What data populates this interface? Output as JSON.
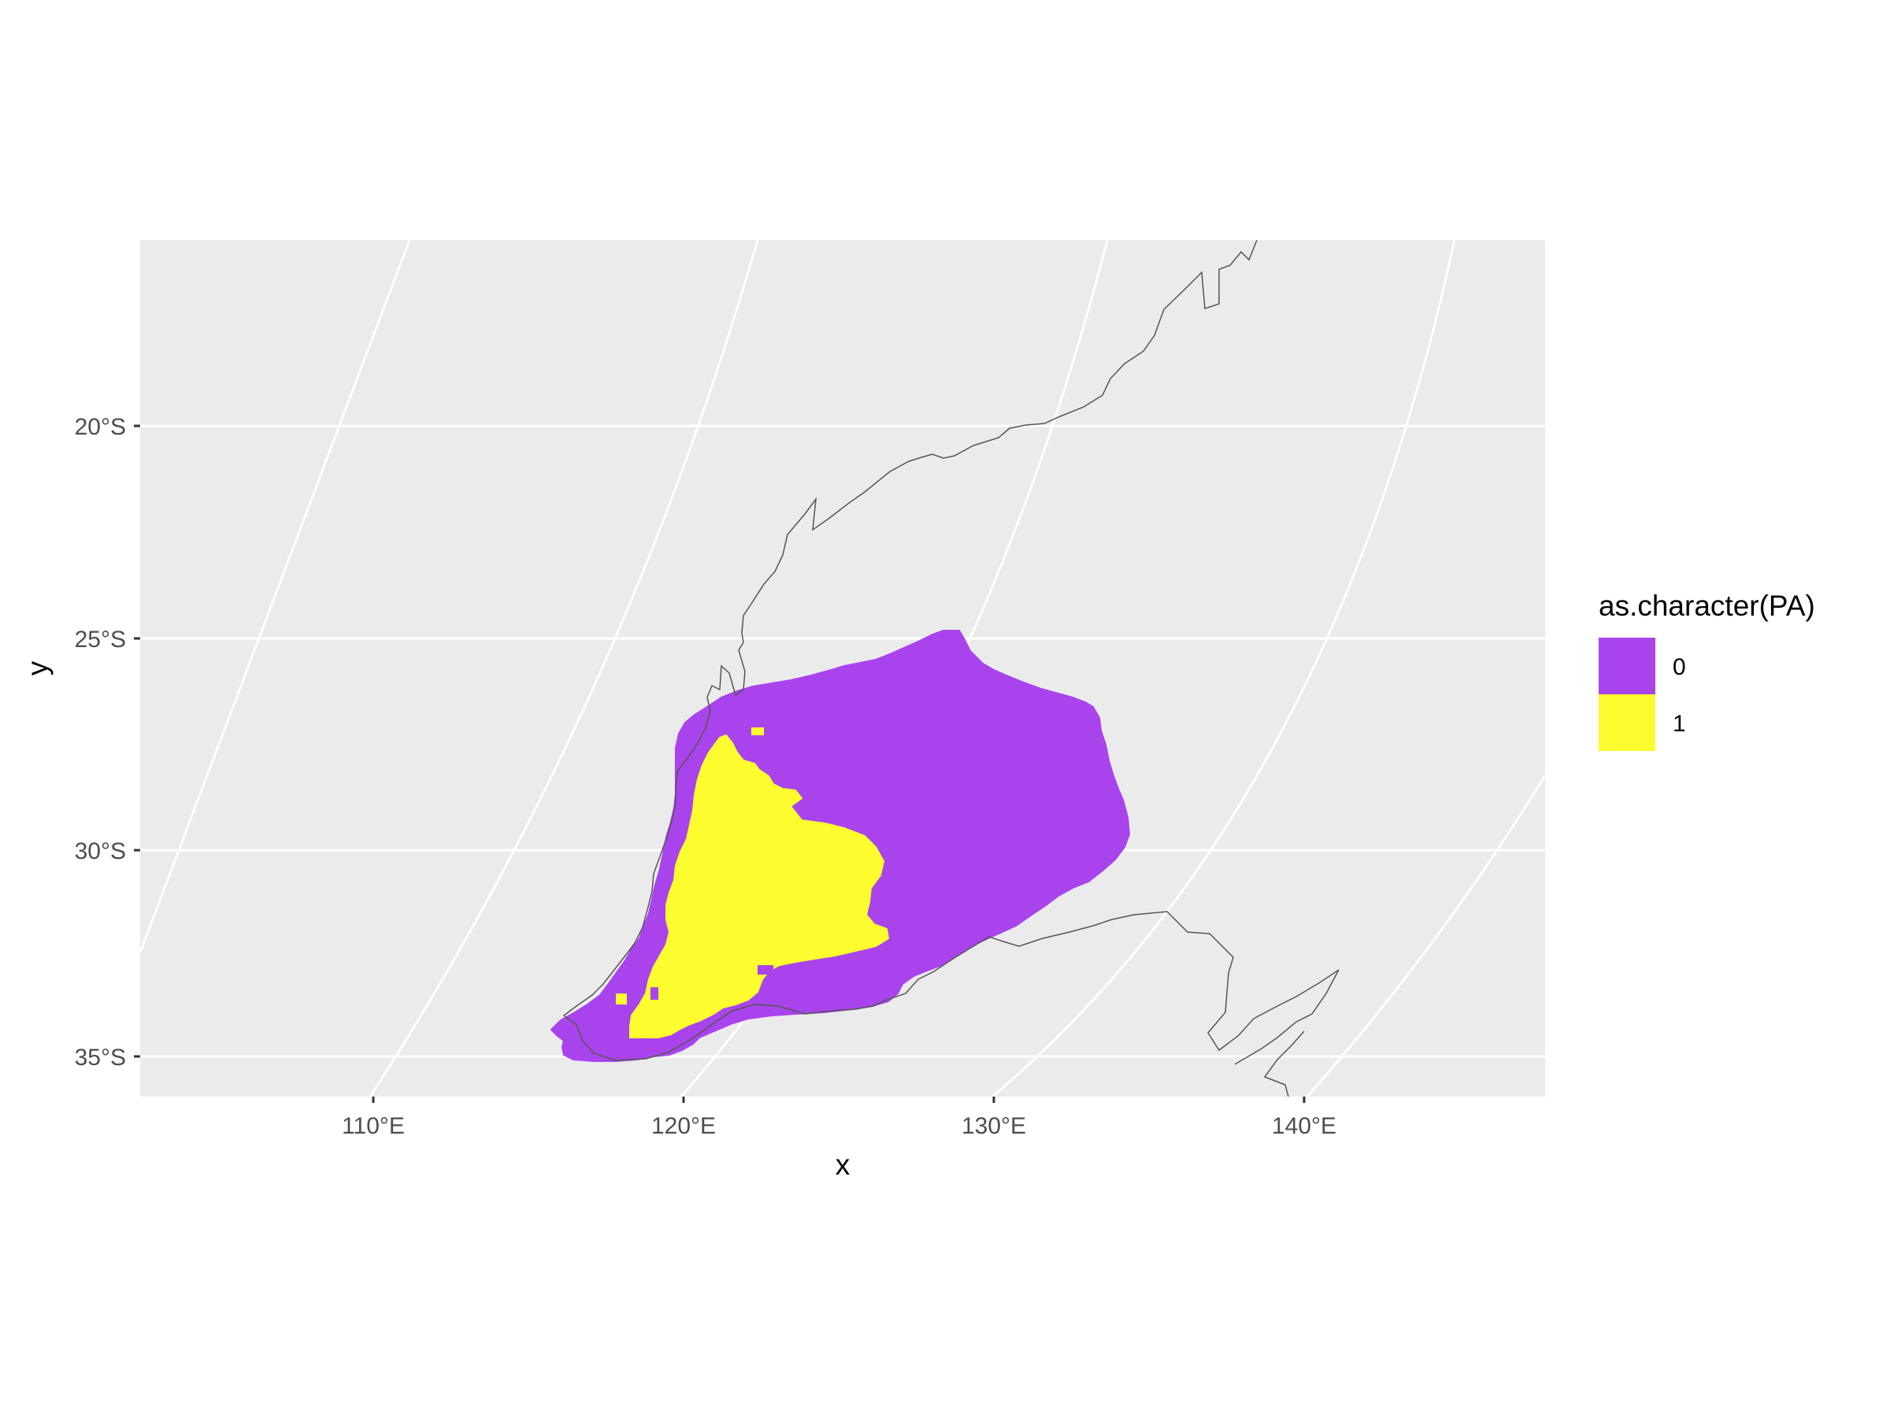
{
  "chart_data": {
    "type": "heatmap",
    "title": "",
    "xlabel": "x",
    "ylabel": "y",
    "x_ticks": [
      "110°E",
      "120°E",
      "130°E",
      "140°E"
    ],
    "y_ticks": [
      "20°S",
      "25°S",
      "30°S",
      "35°S"
    ],
    "legend": {
      "title": "as.character(PA)",
      "placement": "right",
      "entries": [
        {
          "label": "0",
          "color": "#A944EC"
        },
        {
          "label": "1",
          "color": "#FCFC2E"
        }
      ]
    },
    "grid": true,
    "panel_background": "#EBEBEB"
  }
}
